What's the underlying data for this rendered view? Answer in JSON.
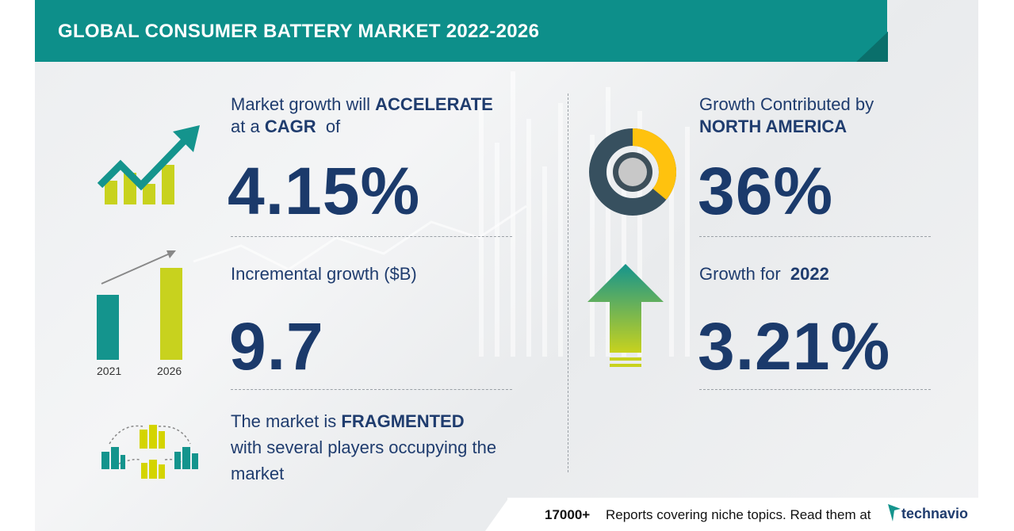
{
  "header": {
    "title": "GLOBAL CONSUMER BATTERY MARKET 2022-2026"
  },
  "cagr": {
    "line1_pre": "Market growth will ",
    "line1_bold": "ACCELERATE",
    "line2_pre": "at a ",
    "line2_bold": "CAGR",
    "line2_post": "  of",
    "value": "4.15%"
  },
  "incremental": {
    "label": "Incremental growth ($B)",
    "value": "9.7",
    "years": [
      "2021",
      "2026"
    ]
  },
  "market": {
    "line1_pre": "The market is ",
    "line1_bold": "FRAGMENTED",
    "line2": "with several players occupying the",
    "line3": "market"
  },
  "region": {
    "line1": "Growth Contributed by",
    "line2": "NORTH AMERICA",
    "value": "36%",
    "share": 0.36
  },
  "yoy": {
    "label_pre": "Growth for  ",
    "label_bold": "2022",
    "value": "3.21%"
  },
  "footer": {
    "count": "17000+",
    "text": "Reports covering niche topics. Read them at",
    "brand": "technavio"
  },
  "colors": {
    "teal": "#0d8f8a",
    "navy": "#1b3a6b",
    "yellow": "#ffc20e",
    "lime": "#c8d21e",
    "donut_dark": "#37505f"
  }
}
